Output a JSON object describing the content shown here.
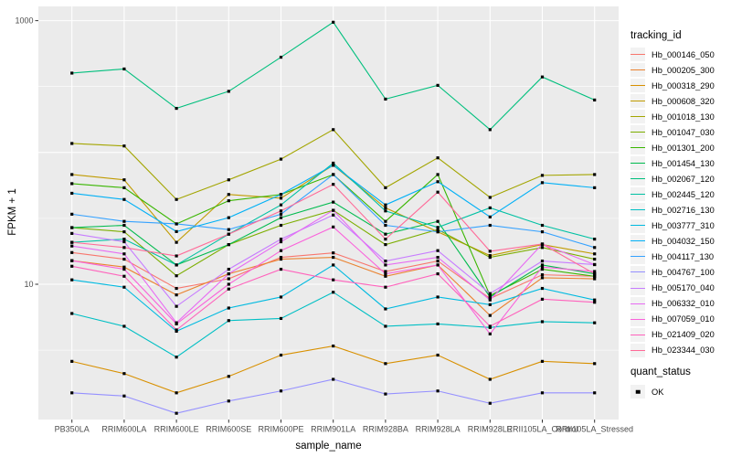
{
  "chart": {
    "y_axis_title": "FPKM + 1",
    "x_axis_title": "sample_name",
    "legend_title": "tracking_id",
    "legend2_title": "quant_status",
    "legend2_items": [
      {
        "label": "OK",
        "marker": "black-square"
      }
    ],
    "panel_bg_color": "#EBEBEB",
    "gridline_color": "#FFFFFF",
    "tick_label_color": "#4D4D4D",
    "point_color": "#000000",
    "y_tick_labels": [
      "1000",
      "10"
    ]
  },
  "chart_data": {
    "type": "line",
    "x_label": "sample_name",
    "y_label": "FPKM + 1",
    "y_scale": "log10",
    "ylim": [
      0.95,
      1300
    ],
    "y_ticks": [
      {
        "value": 10,
        "label": "10"
      },
      {
        "value": 1000,
        "label": "1000"
      }
    ],
    "y_major_gridlines": [
      10,
      100,
      1000
    ],
    "y_minor_gridlines": [
      3.162,
      31.62,
      316.2
    ],
    "grid": true,
    "legend_position": "right",
    "categories": [
      "PB350LA",
      "RRIM600LA",
      "RRIM600LE",
      "RRIM600SE",
      "RRIM600PE",
      "RRIM901LA",
      "RRIM928BA",
      "RRIM928LA",
      "RRIM928LE",
      "RRII105LA_Control",
      "RRII105LA_Stressed"
    ],
    "series": [
      {
        "name": "Hb_000146_050",
        "color": "#F8766D",
        "values": [
          17.4,
          15.5,
          9.3,
          11,
          16,
          17.3,
          12.5,
          15,
          7.8,
          11.8,
          11.5
        ]
      },
      {
        "name": "Hb_000205_300",
        "color": "#EA8331",
        "values": [
          15.1,
          13.5,
          8.3,
          12,
          15.5,
          16,
          11.5,
          14,
          5.8,
          11.2,
          11.0
        ]
      },
      {
        "name": "Hb_000318_290",
        "color": "#D89000",
        "values": [
          2.6,
          2.1,
          1.5,
          2.0,
          2.9,
          3.4,
          2.5,
          2.9,
          1.9,
          2.6,
          2.5
        ]
      },
      {
        "name": "Hb_000608_320",
        "color": "#C09B00",
        "values": [
          68,
          62,
          20.8,
          48,
          45,
          80,
          38,
          25,
          16.5,
          20,
          17
        ]
      },
      {
        "name": "Hb_001018_130",
        "color": "#A3A500",
        "values": [
          117,
          112,
          44,
          62,
          89,
          149,
          54,
          91,
          45.6,
          67,
          68
        ]
      },
      {
        "name": "Hb_001047_030",
        "color": "#7CAE00",
        "values": [
          26.9,
          25,
          11.6,
          20,
          28,
          36.4,
          20,
          26,
          16,
          19,
          15.5
        ]
      },
      {
        "name": "Hb_001301_200",
        "color": "#39B600",
        "values": [
          58,
          54,
          28.7,
          43,
          48,
          68,
          30,
          68,
          8.2,
          13,
          11.5
        ]
      },
      {
        "name": "Hb_001454_130",
        "color": "#00BB4E",
        "values": [
          26.9,
          28,
          14.0,
          20,
          32,
          42,
          24,
          30,
          8.0,
          14,
          12
        ]
      },
      {
        "name": "Hb_002067_120",
        "color": "#00BF7D",
        "values": [
          400,
          430,
          216,
          291,
          528,
          973,
          254,
          323,
          149,
          374,
          250
        ]
      },
      {
        "name": "Hb_002445_120",
        "color": "#00C1A3",
        "values": [
          20.8,
          22,
          14,
          24,
          40,
          83,
          36,
          27,
          38,
          28,
          22
        ]
      },
      {
        "name": "Hb_002716_130",
        "color": "#00BFC4",
        "values": [
          6.0,
          4.8,
          2.8,
          5.3,
          5.5,
          8.7,
          4.8,
          5.0,
          4.7,
          5.2,
          5.1
        ]
      },
      {
        "name": "Hb_003777_310",
        "color": "#00BAE0",
        "values": [
          10.8,
          9.5,
          4.4,
          6.6,
          8.0,
          14,
          6.5,
          8.0,
          7.0,
          9.3,
          7.6
        ]
      },
      {
        "name": "Hb_004032_150",
        "color": "#00B0F6",
        "values": [
          49,
          44,
          25.1,
          32,
          48,
          80,
          40,
          60,
          32.4,
          59,
          54
        ]
      },
      {
        "name": "Hb_004117_130",
        "color": "#35A2FF",
        "values": [
          34,
          30,
          28.7,
          26,
          34,
          68,
          28,
          25,
          28,
          25,
          19
        ]
      },
      {
        "name": "Hb_004767_100",
        "color": "#9590FF",
        "values": [
          1.5,
          1.42,
          1.05,
          1.3,
          1.55,
          1.9,
          1.47,
          1.55,
          1.25,
          1.5,
          1.5
        ]
      },
      {
        "name": "Hb_005170_040",
        "color": "#C77CFF",
        "values": [
          24.3,
          21,
          6.8,
          13,
          22,
          33.5,
          15,
          18,
          8.5,
          15,
          14.1
        ]
      },
      {
        "name": "Hb_006332_010",
        "color": "#E76BF3",
        "values": [
          19.5,
          17,
          5.1,
          12,
          21,
          36.4,
          14,
          16,
          7.6,
          20.2,
          14.1
        ]
      },
      {
        "name": "Hb_007059_010",
        "color": "#FA62DB",
        "values": [
          15.1,
          13,
          5.0,
          10,
          18,
          27.2,
          12,
          14,
          4.2,
          13.5,
          12.5
        ]
      },
      {
        "name": "Hb_021409_020",
        "color": "#FF62BC",
        "values": [
          13.7,
          11.5,
          4.5,
          9.2,
          13,
          10.8,
          9.5,
          12,
          4.8,
          7.7,
          7.3
        ]
      },
      {
        "name": "Hb_023344_030",
        "color": "#FF6A98",
        "values": [
          20.8,
          19,
          16.4,
          24,
          36,
          57.3,
          22,
          50,
          17.8,
          20.2,
          12
        ]
      }
    ],
    "point_marker": "black-dot",
    "quant_status_all": "OK"
  }
}
